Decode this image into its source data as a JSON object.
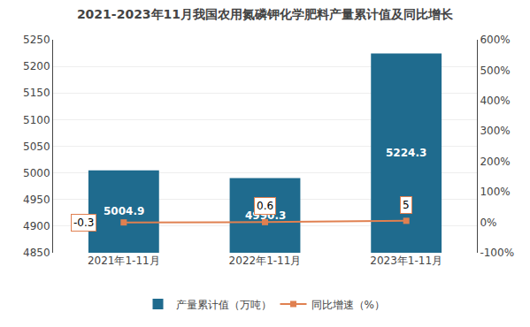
{
  "chart_data": {
    "type": "bar",
    "title": "2021-2023年11月我国农用氮磷钾化学肥料产量累计值及同比增长",
    "categories": [
      "2021年1-11月",
      "2022年1-11月",
      "2023年1-11月"
    ],
    "series": [
      {
        "name": "产量累计值（万吨）",
        "type": "bar",
        "color": "#1F6B8E",
        "values": [
          5004.9,
          4990.3,
          5224.3
        ]
      },
      {
        "name": "同比增速（%）",
        "type": "line",
        "color": "#E08050",
        "marker": "square",
        "axis": "y2",
        "values": [
          -0.3,
          0.6,
          5
        ]
      }
    ],
    "ylim": [
      4850,
      5250
    ],
    "yticks": [
      4850,
      4900,
      4950,
      5000,
      5050,
      5100,
      5150,
      5200,
      5250
    ],
    "y2lim": [
      -100,
      600
    ],
    "y2ticks": [
      {
        "value": -100,
        "label": "-100%"
      },
      {
        "value": 0,
        "label": "0%"
      },
      {
        "value": 100,
        "label": "100%"
      },
      {
        "value": 200,
        "label": "200%"
      },
      {
        "value": 300,
        "label": "300%"
      },
      {
        "value": 400,
        "label": "400%"
      },
      {
        "value": 500,
        "label": "500%"
      },
      {
        "value": 600,
        "label": "600%"
      }
    ],
    "grid": true,
    "legend": "bottom",
    "data_labels": true
  }
}
